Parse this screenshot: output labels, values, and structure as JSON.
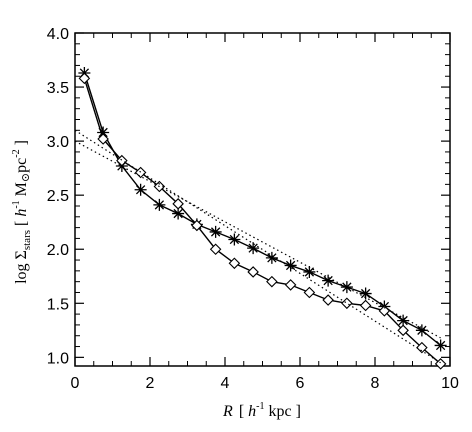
{
  "chart_data": {
    "type": "line",
    "xlabel": {
      "var": "R",
      "pre": "[ ",
      "h": "h",
      "exp": "-1",
      "unit": " kpc ]"
    },
    "ylabel": {
      "pre": "log ",
      "sym": "Σ",
      "sub": "stars",
      "bracket_open": "[ ",
      "h": "h",
      "exp1": "-1",
      "msun": " M",
      "sun": "⊙",
      "pc": "pc",
      "exp2": "-2",
      "bracket_close": " ]"
    },
    "xlim": [
      0,
      10
    ],
    "ylim": [
      0.92,
      4.0
    ],
    "xticks": [
      0,
      2,
      4,
      6,
      8,
      10
    ],
    "xtick_labels": [
      "0",
      "2",
      "4",
      "6",
      "8",
      "10"
    ],
    "yticks": [
      1.0,
      1.5,
      2.0,
      2.5,
      3.0,
      3.5,
      4.0
    ],
    "ytick_labels": [
      "1.0",
      "1.5",
      "2.0",
      "2.5",
      "3.0",
      "3.5",
      "4.0"
    ],
    "grid": false,
    "series": [
      {
        "marker": "asterisk",
        "line": "solid",
        "x": [
          0.25,
          0.75,
          1.25,
          1.75,
          2.25,
          2.75,
          3.25,
          3.75,
          4.25,
          4.75,
          5.25,
          5.75,
          6.25,
          6.75,
          7.25,
          7.75,
          8.25,
          8.75,
          9.25,
          9.75
        ],
        "y": [
          3.63,
          3.08,
          2.77,
          2.55,
          2.41,
          2.33,
          2.23,
          2.16,
          2.09,
          2.01,
          1.92,
          1.85,
          1.79,
          1.71,
          1.65,
          1.59,
          1.47,
          1.34,
          1.25,
          1.11
        ]
      },
      {
        "marker": "diamond",
        "line": "solid",
        "x": [
          0.25,
          0.75,
          1.25,
          1.75,
          2.25,
          2.75,
          3.25,
          3.75,
          4.25,
          4.75,
          5.25,
          5.75,
          6.25,
          6.75,
          7.25,
          7.75,
          8.25,
          8.75,
          9.25,
          9.75
        ],
        "y": [
          3.58,
          3.02,
          2.82,
          2.71,
          2.58,
          2.42,
          2.22,
          2.0,
          1.87,
          1.79,
          1.7,
          1.67,
          1.6,
          1.53,
          1.5,
          1.48,
          1.43,
          1.25,
          1.09,
          0.94
        ]
      },
      {
        "marker": "none",
        "line": "dotted",
        "x": [
          0.0,
          9.75
        ],
        "y": [
          3.1,
          0.95
        ]
      },
      {
        "marker": "none",
        "line": "dotted",
        "x": [
          0.0,
          9.75
        ],
        "y": [
          3.0,
          1.18
        ]
      }
    ]
  }
}
